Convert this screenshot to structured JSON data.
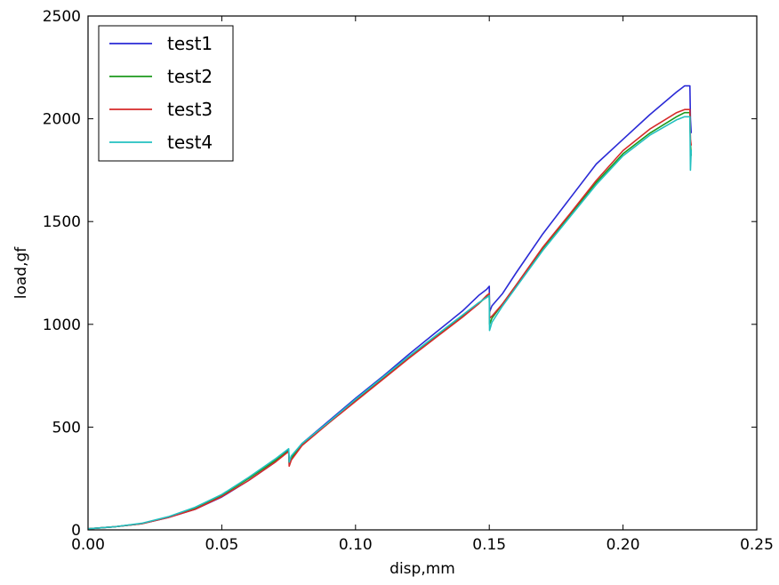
{
  "chart_data": {
    "type": "line",
    "title": "",
    "xlabel": "disp,mm",
    "ylabel": "load,gf",
    "xlim": [
      0,
      0.25
    ],
    "ylim": [
      0,
      2500
    ],
    "x_ticks": [
      "0.00",
      "0.05",
      "0.10",
      "0.15",
      "0.20",
      "0.25"
    ],
    "y_ticks": [
      "0",
      "500",
      "1000",
      "1500",
      "2000",
      "2500"
    ],
    "grid": false,
    "legend_position": "top-left",
    "series": [
      {
        "name": "test1",
        "color": "#2a2ad6",
        "x": [
          0,
          0.01,
          0.02,
          0.03,
          0.04,
          0.05,
          0.06,
          0.07,
          0.075,
          0.0752,
          0.076,
          0.08,
          0.09,
          0.1,
          0.11,
          0.12,
          0.13,
          0.14,
          0.146,
          0.149,
          0.15,
          0.1501,
          0.151,
          0.155,
          0.16,
          0.17,
          0.18,
          0.19,
          0.2,
          0.21,
          0.22,
          0.223,
          0.225,
          0.2252,
          0.2255
        ],
        "y": [
          5,
          15,
          30,
          60,
          100,
          160,
          240,
          330,
          390,
          330,
          355,
          420,
          530,
          640,
          745,
          855,
          960,
          1065,
          1140,
          1170,
          1185,
          1060,
          1090,
          1150,
          1250,
          1440,
          1610,
          1780,
          1900,
          2020,
          2130,
          2160,
          2160,
          2000,
          1930
        ]
      },
      {
        "name": "test2",
        "color": "#1d9a1d",
        "x": [
          0,
          0.01,
          0.02,
          0.03,
          0.04,
          0.05,
          0.06,
          0.07,
          0.075,
          0.0752,
          0.076,
          0.08,
          0.09,
          0.1,
          0.11,
          0.12,
          0.13,
          0.14,
          0.146,
          0.149,
          0.15,
          0.1501,
          0.151,
          0.155,
          0.16,
          0.17,
          0.18,
          0.19,
          0.2,
          0.21,
          0.22,
          0.223,
          0.225,
          0.2252,
          0.2255
        ],
        "y": [
          5,
          15,
          30,
          62,
          105,
          168,
          250,
          338,
          385,
          325,
          350,
          415,
          520,
          630,
          735,
          840,
          940,
          1040,
          1100,
          1135,
          1150,
          1000,
          1030,
          1100,
          1190,
          1370,
          1530,
          1690,
          1830,
          1930,
          2010,
          2030,
          2030,
          1880,
          1820
        ]
      },
      {
        "name": "test3",
        "color": "#d62a2a",
        "x": [
          0,
          0.01,
          0.02,
          0.03,
          0.04,
          0.05,
          0.06,
          0.07,
          0.075,
          0.0752,
          0.076,
          0.08,
          0.09,
          0.1,
          0.11,
          0.12,
          0.13,
          0.14,
          0.146,
          0.149,
          0.15,
          0.1501,
          0.151,
          0.155,
          0.16,
          0.17,
          0.18,
          0.19,
          0.2,
          0.21,
          0.22,
          0.223,
          0.225,
          0.2252,
          0.2255
        ],
        "y": [
          5,
          15,
          30,
          60,
          100,
          162,
          240,
          330,
          382,
          310,
          340,
          410,
          520,
          625,
          730,
          835,
          935,
          1035,
          1100,
          1140,
          1150,
          1030,
          1040,
          1100,
          1190,
          1375,
          1535,
          1700,
          1845,
          1950,
          2030,
          2045,
          2045,
          1900,
          1870
        ]
      },
      {
        "name": "test4",
        "color": "#22c0c0",
        "x": [
          0,
          0.01,
          0.02,
          0.03,
          0.04,
          0.05,
          0.06,
          0.07,
          0.075,
          0.0752,
          0.076,
          0.08,
          0.09,
          0.1,
          0.11,
          0.12,
          0.13,
          0.14,
          0.146,
          0.149,
          0.15,
          0.1501,
          0.151,
          0.155,
          0.16,
          0.17,
          0.18,
          0.19,
          0.2,
          0.21,
          0.22,
          0.223,
          0.225,
          0.2252,
          0.2255
        ],
        "y": [
          5,
          15,
          32,
          64,
          110,
          172,
          255,
          345,
          395,
          330,
          360,
          420,
          525,
          635,
          740,
          845,
          945,
          1045,
          1105,
          1130,
          1140,
          970,
          1010,
          1090,
          1180,
          1360,
          1520,
          1680,
          1820,
          1920,
          1995,
          2010,
          2010,
          1750,
          1850
        ]
      }
    ]
  }
}
